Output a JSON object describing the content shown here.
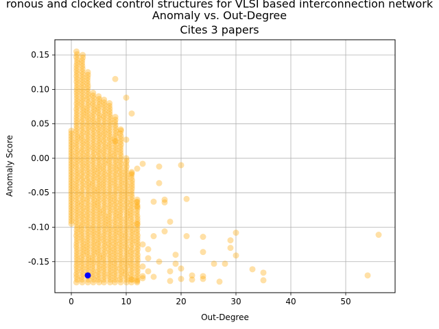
{
  "chart_data": {
    "type": "scatter",
    "title_lines": [
      "ronous and clocked control structures for VLSI based interconnection network",
      "Anomaly vs. Out-Degree",
      "Cites 3 papers"
    ],
    "xlabel": "Out-Degree",
    "ylabel": "Anomaly Score",
    "xlim": [
      -3.0,
      59.0
    ],
    "ylim": [
      -0.195,
      0.172
    ],
    "xticks": [
      0,
      10,
      20,
      30,
      40,
      50
    ],
    "yticks": [
      -0.15,
      -0.1,
      -0.05,
      0.0,
      0.05,
      0.1,
      0.15
    ],
    "grid": true,
    "colors": {
      "background_points": "#FFA500",
      "highlight": "#0000FF"
    },
    "background_series": {
      "dense_columns": [
        {
          "x": 0,
          "y_range": [
            -0.095,
            0.04
          ]
        },
        {
          "x": 1,
          "y_range": [
            -0.18,
            0.155
          ]
        },
        {
          "x": 2,
          "y_range": [
            -0.18,
            0.15
          ]
        },
        {
          "x": 3,
          "y_range": [
            -0.18,
            0.125
          ]
        },
        {
          "x": 4,
          "y_range": [
            -0.18,
            0.095
          ]
        },
        {
          "x": 5,
          "y_range": [
            -0.18,
            0.09
          ]
        },
        {
          "x": 6,
          "y_range": [
            -0.18,
            0.085
          ]
        },
        {
          "x": 7,
          "y_range": [
            -0.18,
            0.08
          ]
        },
        {
          "x": 8,
          "y_range": [
            -0.18,
            0.06
          ]
        },
        {
          "x": 9,
          "y_range": [
            -0.18,
            0.04
          ]
        },
        {
          "x": 10,
          "y_range": [
            -0.18,
            0.0
          ]
        },
        {
          "x": 11,
          "y_range": [
            -0.18,
            -0.02
          ]
        },
        {
          "x": 12,
          "y_range": [
            -0.18,
            -0.06
          ]
        }
      ],
      "points": [
        [
          8,
          0.115
        ],
        [
          10,
          0.088
        ],
        [
          11,
          0.065
        ],
        [
          9,
          0.042
        ],
        [
          8,
          0.025
        ],
        [
          10,
          0.027
        ],
        [
          13,
          -0.008
        ],
        [
          12,
          -0.015
        ],
        [
          16,
          -0.012
        ],
        [
          20,
          -0.01
        ],
        [
          11,
          -0.022
        ],
        [
          16,
          -0.036
        ],
        [
          21,
          -0.059
        ],
        [
          12,
          -0.063
        ],
        [
          17,
          -0.06
        ],
        [
          17,
          -0.064
        ],
        [
          15,
          -0.063
        ],
        [
          12,
          -0.07
        ],
        [
          18,
          -0.092
        ],
        [
          12,
          -0.095
        ],
        [
          17,
          -0.106
        ],
        [
          15,
          -0.113
        ],
        [
          21,
          -0.113
        ],
        [
          24,
          -0.114
        ],
        [
          30,
          -0.108
        ],
        [
          13,
          -0.125
        ],
        [
          29,
          -0.119
        ],
        [
          14,
          -0.132
        ],
        [
          24,
          -0.136
        ],
        [
          29,
          -0.13
        ],
        [
          19,
          -0.14
        ],
        [
          30,
          -0.141
        ],
        [
          14,
          -0.145
        ],
        [
          16,
          -0.15
        ],
        [
          19,
          -0.153
        ],
        [
          26,
          -0.153
        ],
        [
          28,
          -0.153
        ],
        [
          13,
          -0.157
        ],
        [
          20,
          -0.16
        ],
        [
          33,
          -0.161
        ],
        [
          14,
          -0.164
        ],
        [
          18,
          -0.164
        ],
        [
          35,
          -0.166
        ],
        [
          56,
          -0.111
        ],
        [
          54,
          -0.17
        ],
        [
          22,
          -0.17
        ],
        [
          24,
          -0.171
        ],
        [
          15,
          -0.172
        ],
        [
          13,
          -0.171
        ],
        [
          20,
          -0.175
        ],
        [
          22,
          -0.176
        ],
        [
          24,
          -0.175
        ],
        [
          27,
          -0.179
        ],
        [
          35,
          -0.177
        ],
        [
          18,
          -0.178
        ],
        [
          11,
          -0.176
        ],
        [
          12,
          -0.178
        ],
        [
          13,
          -0.174
        ]
      ]
    },
    "highlight_point": {
      "x": 3,
      "y": -0.17
    }
  }
}
